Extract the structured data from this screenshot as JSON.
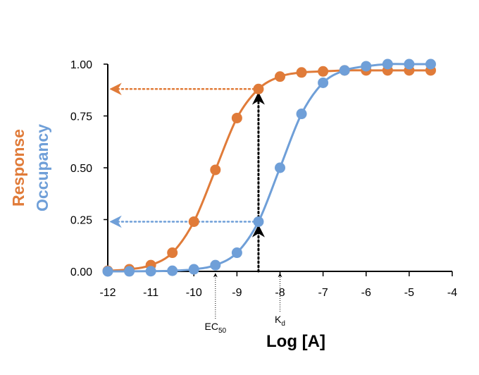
{
  "chart_data": {
    "type": "line",
    "x_label": "Log [A]",
    "x": [
      -12,
      -11.5,
      -11,
      -10.5,
      -10,
      -9.5,
      -9,
      -8.5,
      -8,
      -7.5,
      -7,
      -6.5,
      -6,
      -5.5,
      -5,
      -4.5
    ],
    "series": [
      {
        "name": "Response",
        "color": "#e07b39",
        "values": [
          0.003,
          0.01,
          0.03,
          0.09,
          0.24,
          0.49,
          0.74,
          0.88,
          0.94,
          0.96,
          0.965,
          0.97,
          0.97,
          0.97,
          0.97,
          0.97
        ]
      },
      {
        "name": "Occupancy",
        "color": "#6f9fd8",
        "values": [
          0.0001,
          0.0003,
          0.001,
          0.003,
          0.01,
          0.03,
          0.09,
          0.24,
          0.5,
          0.76,
          0.91,
          0.97,
          0.99,
          1.0,
          1.0,
          1.0
        ]
      }
    ],
    "xlim": [
      -12,
      -4
    ],
    "xticks": [
      -12,
      -11,
      -10,
      -9,
      -8,
      -7,
      -6,
      -5,
      -4
    ],
    "ylim": [
      0,
      1
    ],
    "yticks": [
      {
        "value": 0,
        "label": "0.00"
      },
      {
        "value": 0.25,
        "label": "0.25"
      },
      {
        "value": 0.5,
        "label": "0.50"
      },
      {
        "value": 0.75,
        "label": "0.75"
      },
      {
        "value": 1,
        "label": "1.00"
      }
    ],
    "guide_index": 7,
    "annotations": [
      {
        "text": "EC",
        "subscript": "50",
        "x": -9.5
      },
      {
        "text": "K",
        "subscript": "d",
        "x": -8
      }
    ]
  }
}
